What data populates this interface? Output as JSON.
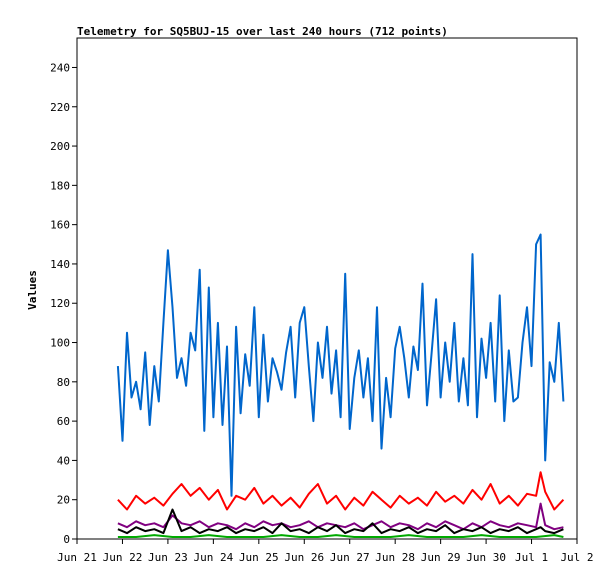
{
  "chart_data": {
    "type": "line",
    "title": "Telemetry for SQ5BUJ-15 over last 240 hours (712 points)",
    "xlabel": "",
    "ylabel": "Values",
    "ylim": [
      0,
      255
    ],
    "yticks": [
      0,
      20,
      40,
      60,
      80,
      100,
      120,
      140,
      160,
      180,
      200,
      220,
      240
    ],
    "x_tick_labels": [
      "Jun 21",
      "Jun 22",
      "Jun 23",
      "Jun 24",
      "Jun 25",
      "Jun 26",
      "Jun 27",
      "Jun 28",
      "Jun 29",
      "Jun 30",
      "Jul 1",
      "Jul 2"
    ],
    "xlim_days": [
      0,
      11
    ],
    "grid": false,
    "legend": "none",
    "series": [
      {
        "color": "#0066cc",
        "x": [
          0.9,
          1.0,
          1.1,
          1.2,
          1.3,
          1.4,
          1.5,
          1.6,
          1.7,
          1.8,
          1.9,
          2.0,
          2.1,
          2.2,
          2.3,
          2.4,
          2.5,
          2.6,
          2.7,
          2.8,
          2.9,
          3.0,
          3.1,
          3.2,
          3.3,
          3.4,
          3.5,
          3.6,
          3.7,
          3.8,
          3.9,
          4.0,
          4.1,
          4.2,
          4.3,
          4.4,
          4.5,
          4.6,
          4.7,
          4.8,
          4.9,
          5.0,
          5.1,
          5.2,
          5.3,
          5.4,
          5.5,
          5.6,
          5.7,
          5.8,
          5.9,
          6.0,
          6.1,
          6.2,
          6.3,
          6.4,
          6.5,
          6.6,
          6.7,
          6.8,
          6.9,
          7.0,
          7.1,
          7.2,
          7.3,
          7.4,
          7.5,
          7.6,
          7.7,
          7.8,
          7.9,
          8.0,
          8.1,
          8.2,
          8.3,
          8.4,
          8.5,
          8.6,
          8.7,
          8.8,
          8.9,
          9.0,
          9.1,
          9.2,
          9.3,
          9.4,
          9.5,
          9.6,
          9.7,
          9.8,
          9.9,
          10.0,
          10.1,
          10.2,
          10.3,
          10.4,
          10.5,
          10.6,
          10.7
        ],
        "y": [
          88,
          50,
          105,
          72,
          80,
          66,
          95,
          58,
          88,
          70,
          110,
          147,
          118,
          82,
          92,
          78,
          105,
          96,
          137,
          55,
          128,
          62,
          110,
          58,
          98,
          22,
          108,
          64,
          94,
          78,
          118,
          62,
          104,
          70,
          92,
          85,
          76,
          95,
          108,
          72,
          110,
          118,
          88,
          60,
          100,
          82,
          108,
          74,
          96,
          62,
          135,
          56,
          82,
          96,
          72,
          92,
          60,
          118,
          46,
          82,
          62,
          97,
          108,
          92,
          72,
          98,
          86,
          130,
          68,
          94,
          122,
          72,
          100,
          80,
          110,
          70,
          92,
          68,
          145,
          62,
          102,
          82,
          110,
          70,
          124,
          60,
          96,
          70,
          72,
          100,
          118,
          88,
          150,
          155,
          40,
          90,
          80,
          110,
          70
        ]
      },
      {
        "color": "#ff0000",
        "x": [
          0.9,
          1.1,
          1.3,
          1.5,
          1.7,
          1.9,
          2.1,
          2.3,
          2.5,
          2.7,
          2.9,
          3.1,
          3.3,
          3.5,
          3.7,
          3.9,
          4.1,
          4.3,
          4.5,
          4.7,
          4.9,
          5.1,
          5.3,
          5.5,
          5.7,
          5.9,
          6.1,
          6.3,
          6.5,
          6.7,
          6.9,
          7.1,
          7.3,
          7.5,
          7.7,
          7.9,
          8.1,
          8.3,
          8.5,
          8.7,
          8.9,
          9.1,
          9.3,
          9.5,
          9.7,
          9.9,
          10.1,
          10.2,
          10.3,
          10.5,
          10.7
        ],
        "y": [
          20,
          15,
          22,
          18,
          21,
          17,
          23,
          28,
          22,
          26,
          20,
          25,
          15,
          22,
          20,
          26,
          18,
          22,
          17,
          21,
          16,
          23,
          28,
          18,
          22,
          15,
          21,
          17,
          24,
          20,
          16,
          22,
          18,
          21,
          17,
          24,
          19,
          22,
          18,
          25,
          20,
          28,
          18,
          22,
          17,
          23,
          22,
          34,
          24,
          15,
          20
        ]
      },
      {
        "color": "#800080",
        "x": [
          0.9,
          1.1,
          1.3,
          1.5,
          1.7,
          1.9,
          2.1,
          2.3,
          2.5,
          2.7,
          2.9,
          3.1,
          3.3,
          3.5,
          3.7,
          3.9,
          4.1,
          4.3,
          4.5,
          4.7,
          4.9,
          5.1,
          5.3,
          5.5,
          5.7,
          5.9,
          6.1,
          6.3,
          6.5,
          6.7,
          6.9,
          7.1,
          7.3,
          7.5,
          7.7,
          7.9,
          8.1,
          8.3,
          8.5,
          8.7,
          8.9,
          9.1,
          9.3,
          9.5,
          9.7,
          9.9,
          10.1,
          10.2,
          10.3,
          10.5,
          10.7
        ],
        "y": [
          8,
          6,
          9,
          7,
          8,
          6,
          12,
          8,
          7,
          9,
          6,
          8,
          7,
          5,
          8,
          6,
          9,
          7,
          8,
          6,
          7,
          9,
          6,
          8,
          7,
          6,
          8,
          5,
          7,
          9,
          6,
          8,
          7,
          5,
          8,
          6,
          9,
          7,
          5,
          8,
          6,
          9,
          7,
          6,
          8,
          7,
          6,
          18,
          7,
          5,
          6
        ]
      },
      {
        "color": "#000000",
        "x": [
          0.9,
          1.1,
          1.3,
          1.5,
          1.7,
          1.9,
          2.1,
          2.3,
          2.5,
          2.7,
          2.9,
          3.1,
          3.3,
          3.5,
          3.7,
          3.9,
          4.1,
          4.3,
          4.5,
          4.7,
          4.9,
          5.1,
          5.3,
          5.5,
          5.7,
          5.9,
          6.1,
          6.3,
          6.5,
          6.7,
          6.9,
          7.1,
          7.3,
          7.5,
          7.7,
          7.9,
          8.1,
          8.3,
          8.5,
          8.7,
          8.9,
          9.1,
          9.3,
          9.5,
          9.7,
          9.9,
          10.1,
          10.2,
          10.3,
          10.5,
          10.7
        ],
        "y": [
          5,
          3,
          6,
          4,
          5,
          3,
          15,
          4,
          6,
          3,
          5,
          4,
          6,
          3,
          5,
          4,
          6,
          3,
          8,
          4,
          5,
          3,
          6,
          4,
          7,
          3,
          5,
          4,
          8,
          3,
          5,
          4,
          6,
          3,
          5,
          4,
          7,
          3,
          5,
          4,
          6,
          3,
          5,
          4,
          6,
          3,
          5,
          6,
          4,
          3,
          5
        ]
      },
      {
        "color": "#00aa00",
        "x": [
          0.9,
          1.3,
          1.7,
          2.1,
          2.5,
          2.9,
          3.3,
          3.7,
          4.1,
          4.5,
          4.9,
          5.3,
          5.7,
          6.1,
          6.5,
          6.9,
          7.3,
          7.7,
          8.1,
          8.5,
          8.9,
          9.3,
          9.7,
          10.1,
          10.5,
          10.7
        ],
        "y": [
          1,
          1,
          2,
          1,
          1,
          2,
          1,
          1,
          1,
          2,
          1,
          1,
          2,
          1,
          1,
          1,
          2,
          1,
          1,
          1,
          2,
          1,
          1,
          1,
          2,
          1
        ]
      }
    ]
  }
}
